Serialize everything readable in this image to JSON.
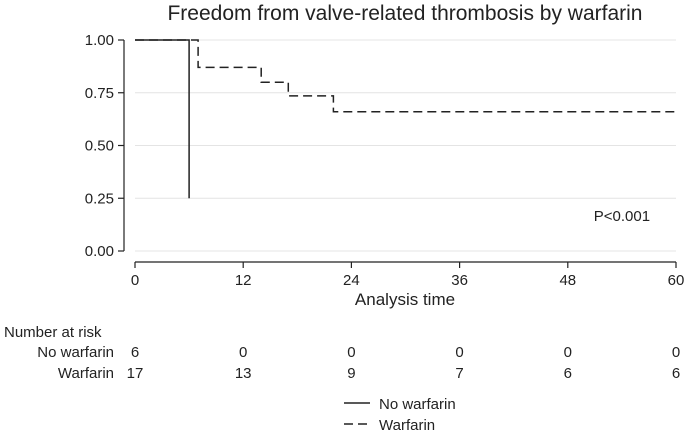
{
  "chart_data": {
    "type": "line",
    "subtype": "kaplan-meier-step",
    "title": "Freedom from valve-related thrombosis by warfarin",
    "xlabel": "Analysis time",
    "ylabel": "",
    "xlim": [
      0,
      60
    ],
    "ylim": [
      0,
      1
    ],
    "x_ticks": [
      0,
      12,
      24,
      36,
      48,
      60
    ],
    "x_tick_labels": [
      "0",
      "12",
      "24",
      "36",
      "48",
      "60"
    ],
    "y_ticks": [
      0,
      0.25,
      0.5,
      0.75,
      1.0
    ],
    "y_tick_labels": [
      "0.00",
      "0.25",
      "0.50",
      "0.75",
      "1.00"
    ],
    "grid": "horizontal",
    "legend_position": "bottom-center",
    "series": [
      {
        "name": "No warfarin",
        "line_style": "solid",
        "x": [
          0,
          6,
          6
        ],
        "y": [
          1.0,
          1.0,
          0.25
        ]
      },
      {
        "name": "Warfarin",
        "line_style": "dashed",
        "x": [
          0,
          7,
          7,
          14,
          14,
          17,
          17,
          22,
          22,
          60
        ],
        "y": [
          1.0,
          1.0,
          0.87,
          0.87,
          0.8,
          0.8,
          0.735,
          0.735,
          0.66,
          0.66
        ]
      }
    ],
    "annotations": [
      {
        "text": "P<0.001",
        "x": 54,
        "y": 0.165
      }
    ],
    "risk_table": {
      "heading": "Number at risk",
      "times": [
        0,
        12,
        24,
        36,
        48,
        60
      ],
      "rows": [
        {
          "label": "No warfarin",
          "counts": [
            "6",
            "0",
            "0",
            "0",
            "0",
            "0"
          ]
        },
        {
          "label": "Warfarin",
          "counts": [
            "17",
            "13",
            "9",
            "7",
            "6",
            "6"
          ]
        }
      ]
    }
  }
}
